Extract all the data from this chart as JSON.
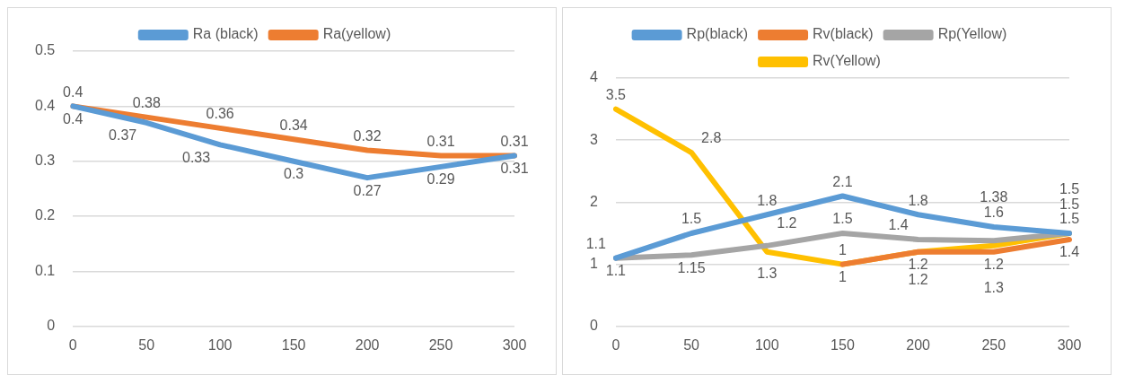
{
  "chart_data": [
    {
      "type": "line",
      "categories": [
        "0",
        "50",
        "100",
        "150",
        "200",
        "250",
        "300"
      ],
      "series": [
        {
          "name": "Ra (black)",
          "color": "#5b9bd5",
          "values": [
            0.4,
            0.37,
            0.33,
            0.3,
            0.27,
            0.29,
            0.31
          ]
        },
        {
          "name": "Ra(yellow)",
          "color": "#ed7d31",
          "values": [
            0.4,
            0.38,
            0.36,
            0.34,
            0.32,
            0.31,
            0.31
          ]
        }
      ],
      "ylim": [
        0,
        0.5
      ],
      "yticks": [
        0,
        0.1,
        0.2,
        0.3,
        0.4,
        0.5
      ],
      "grid": "y",
      "legend": "top",
      "data_labels": true,
      "marker": "none"
    },
    {
      "type": "line",
      "categories": [
        "0",
        "50",
        "100",
        "150",
        "200",
        "250",
        "300"
      ],
      "series": [
        {
          "name": "Rp(black)",
          "color": "#5b9bd5",
          "values": [
            1.1,
            1.5,
            1.8,
            2.1,
            1.8,
            1.6,
            1.5
          ]
        },
        {
          "name": "Rv(black)",
          "color": "#ed7d31",
          "values": [
            null,
            null,
            null,
            1,
            1.2,
            1.2,
            1.4
          ]
        },
        {
          "name": "Rp(Yellow)",
          "color": "#a5a5a5",
          "values": [
            1.1,
            1.15,
            1.3,
            1.5,
            1.4,
            1.38,
            1.5
          ]
        },
        {
          "name": "Rv(Yellow)",
          "color": "#ffc000",
          "values": [
            3.5,
            2.8,
            1.2,
            1,
            1.2,
            1.3,
            1.5
          ]
        }
      ],
      "ylim": [
        0,
        4
      ],
      "yticks": [
        0,
        1,
        2,
        3,
        4
      ],
      "grid": "y",
      "legend": "top",
      "data_labels": true,
      "marker": "none"
    }
  ]
}
